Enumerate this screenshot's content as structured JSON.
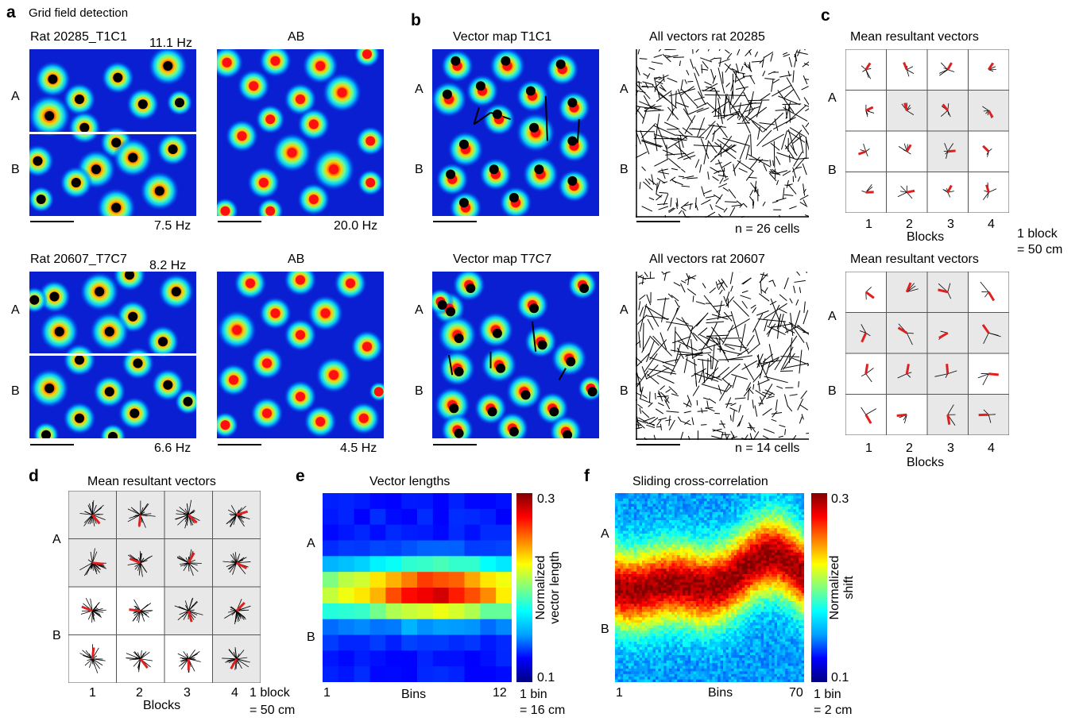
{
  "panel_letters": {
    "a": "a",
    "b": "b",
    "c": "c",
    "d": "d",
    "e": "e",
    "f": "f"
  },
  "panel_a": {
    "title": "Grid field detection",
    "top_map_title": "Rat 20285_T1C1",
    "top_map_peak": "11.1 Hz",
    "top_map_low": "7.5 Hz",
    "top_ab_title": "AB",
    "top_ab_low": "20.0 Hz",
    "bot_map_title": "Rat 20607_T7C7",
    "bot_map_peak": "8.2 Hz",
    "bot_map_low": "6.6 Hz",
    "bot_ab_title": "AB",
    "bot_ab_low": "4.5 Hz",
    "label_A": "A",
    "label_B": "B"
  },
  "panel_b": {
    "top_vector_title": "Vector map T1C1",
    "top_all_title": "All vectors rat 20285",
    "top_n": "n = 26 cells",
    "bot_vector_title": "Vector map T7C7",
    "bot_all_title": "All vectors rat 20607",
    "bot_n": "n = 14 cells",
    "label_A": "A",
    "label_B": "B"
  },
  "panel_c": {
    "top_title": "Mean resultant vectors",
    "bot_title": "Mean resultant vectors",
    "xlabel": "Blocks",
    "ticks": [
      "1",
      "2",
      "3",
      "4"
    ],
    "label_A": "A",
    "label_B": "B",
    "scale_1": "1 block",
    "scale_2": "= 50 cm"
  },
  "panel_d": {
    "title": "Mean resultant vectors",
    "xlabel": "Blocks",
    "ticks": [
      "1",
      "2",
      "3",
      "4"
    ],
    "label_A": "A",
    "label_B": "B",
    "scale_1": "1 block",
    "scale_2": "= 50 cm"
  },
  "panel_e": {
    "title": "Vector lengths",
    "xlabel": "Bins",
    "x_start": "1",
    "x_end": "12",
    "label_A": "A",
    "label_B": "B",
    "cbar_max": "0.3",
    "cbar_min": "0.1",
    "cbar_label_1": "Normalized",
    "cbar_label_2": "vector length",
    "scale_1": "1 bin",
    "scale_2": "= 16 cm"
  },
  "panel_f": {
    "title": "Sliding cross-correlation",
    "xlabel": "Bins",
    "x_start": "1",
    "x_end": "70",
    "label_A": "A",
    "label_B": "B",
    "cbar_max": "0.3",
    "cbar_min": "0.1",
    "cbar_label_1": "Normalized",
    "cbar_label_2": "shift",
    "scale_1": "1 bin",
    "scale_2": "= 2 cm"
  },
  "colors": {
    "background_map": "#0000c8",
    "field_peak": "#ff0000",
    "dot_black": "#000000",
    "dot_red": "#ff0000",
    "grid_shaded": "#e8e8e8"
  }
}
